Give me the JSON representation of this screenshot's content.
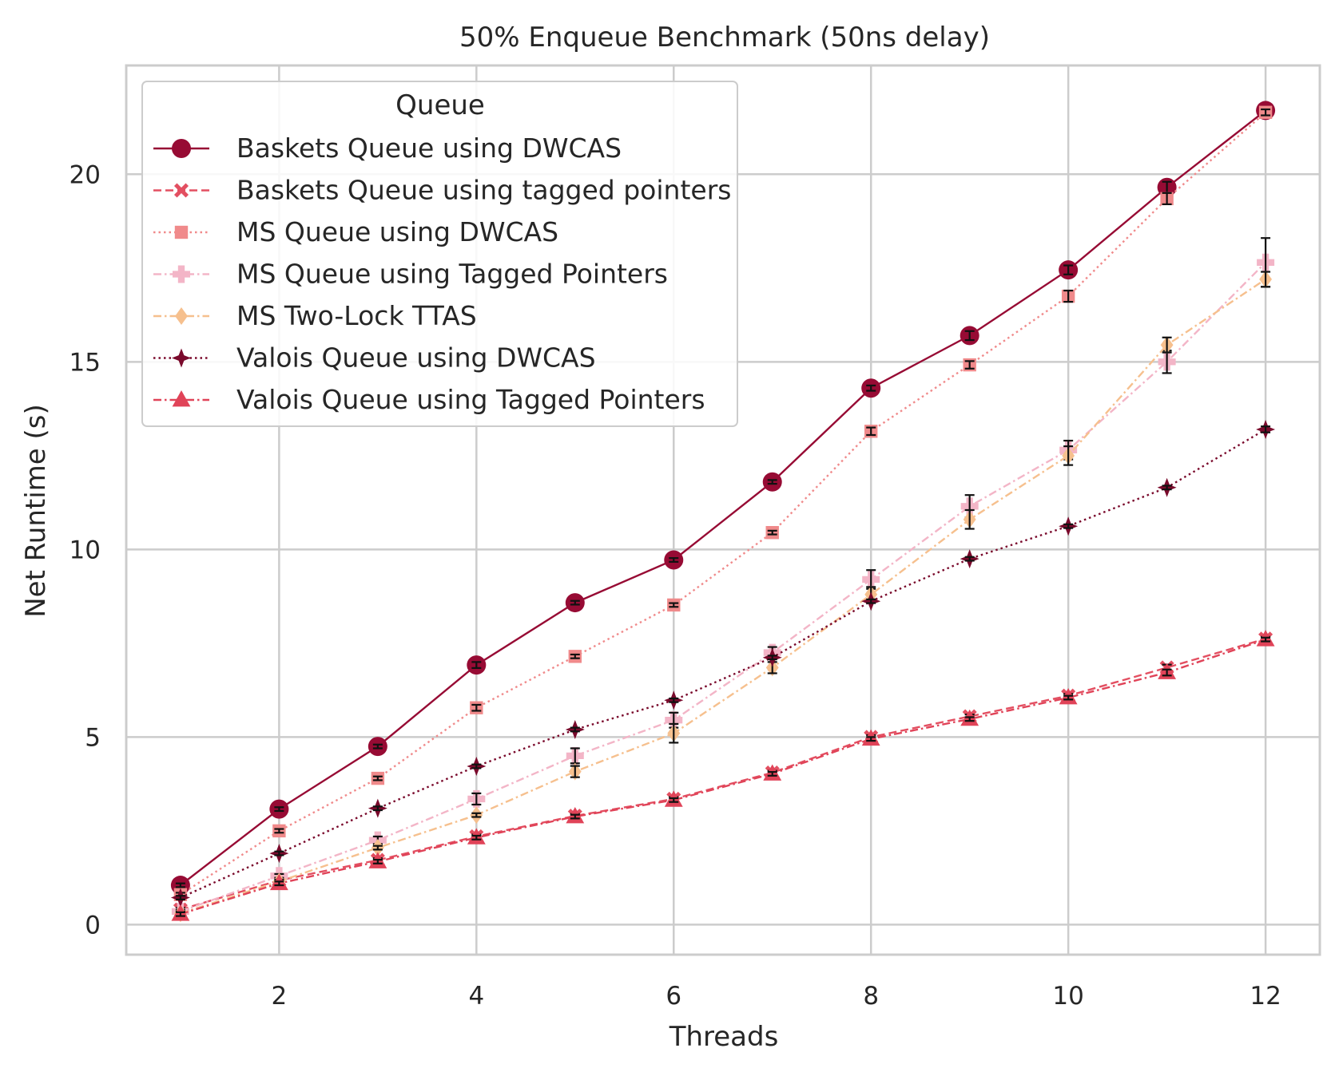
{
  "chart_data": {
    "type": "line",
    "title": "50% Enqueue Benchmark (50ns delay)",
    "xlabel": "Threads",
    "ylabel": "Net Runtime (s)",
    "xlim": [
      0.45,
      12.55
    ],
    "ylim": [
      -0.8,
      22.9
    ],
    "x_ticks": [
      2,
      4,
      6,
      8,
      10,
      12
    ],
    "y_ticks": [
      0,
      5,
      10,
      15,
      20
    ],
    "grid": true,
    "legend_title": "Queue",
    "legend_position": "top-left",
    "x": [
      1,
      2,
      3,
      4,
      5,
      6,
      7,
      8,
      9,
      10,
      11,
      12
    ],
    "series": [
      {
        "name": "Baskets Queue using DWCAS",
        "color": "#970b34",
        "marker": "circle",
        "dash": "solid",
        "values": [
          1.05,
          3.08,
          4.75,
          6.92,
          8.58,
          9.72,
          11.8,
          14.3,
          15.7,
          17.45,
          19.65,
          21.7
        ],
        "errors": [
          0.05,
          0.05,
          0.05,
          0.08,
          0.05,
          0.05,
          0.05,
          0.07,
          0.12,
          0.12,
          0.15,
          0.1
        ]
      },
      {
        "name": "Baskets Queue using tagged pointers",
        "color": "#e34f61",
        "marker": "x",
        "dash": "dashed",
        "values": [
          0.4,
          1.18,
          1.72,
          2.35,
          2.9,
          3.35,
          4.05,
          5.0,
          5.55,
          6.1,
          6.85,
          7.62
        ],
        "errors": [
          0.05,
          0.05,
          0.05,
          0.05,
          0.05,
          0.05,
          0.05,
          0.05,
          0.05,
          0.05,
          0.08,
          0.05
        ]
      },
      {
        "name": "MS Queue using DWCAS",
        "color": "#f08a8b",
        "marker": "square",
        "dash": "dotted",
        "values": [
          0.8,
          2.5,
          3.9,
          5.78,
          7.15,
          8.52,
          10.45,
          13.15,
          14.92,
          16.75,
          19.35,
          21.65
        ],
        "errors": [
          0.05,
          0.05,
          0.05,
          0.08,
          0.05,
          0.05,
          0.05,
          0.1,
          0.1,
          0.15,
          0.15,
          0.08
        ]
      },
      {
        "name": "MS Queue using Tagged Pointers",
        "color": "#f3b5c7",
        "marker": "plus",
        "dash": "dashdot",
        "values": [
          0.35,
          1.3,
          2.25,
          3.35,
          4.5,
          5.45,
          7.25,
          9.2,
          11.15,
          12.65,
          15.0,
          17.65
        ],
        "errors": [
          0.05,
          0.05,
          0.1,
          0.15,
          0.2,
          0.2,
          0.15,
          0.25,
          0.3,
          0.25,
          0.3,
          0.65
        ]
      },
      {
        "name": "MS Two-Lock TTAS",
        "color": "#f6c08e",
        "marker": "diamond",
        "dash": "dashdot",
        "values": [
          0.3,
          1.15,
          2.05,
          2.92,
          4.08,
          5.1,
          6.85,
          8.8,
          10.8,
          12.5,
          15.45,
          17.2
        ],
        "errors": [
          0.05,
          0.05,
          0.05,
          0.05,
          0.15,
          0.25,
          0.15,
          0.2,
          0.25,
          0.25,
          0.2,
          0.2
        ]
      },
      {
        "name": "Valois Queue using DWCAS",
        "color": "#7a0a2c",
        "marker": "star",
        "dash": "dotted",
        "values": [
          0.72,
          1.9,
          3.1,
          4.22,
          5.2,
          5.98,
          7.12,
          8.62,
          9.75,
          10.62,
          11.65,
          13.2
        ],
        "errors": [
          0.05,
          0.05,
          0.05,
          0.05,
          0.05,
          0.05,
          0.05,
          0.05,
          0.05,
          0.05,
          0.05,
          0.08
        ]
      },
      {
        "name": "Valois Queue using Tagged Pointers",
        "color": "#e04358",
        "marker": "triangle",
        "dash": "dashdot",
        "values": [
          0.28,
          1.1,
          1.68,
          2.32,
          2.88,
          3.32,
          4.02,
          4.95,
          5.48,
          6.05,
          6.72,
          7.6
        ],
        "errors": [
          0.05,
          0.05,
          0.05,
          0.05,
          0.05,
          0.05,
          0.05,
          0.05,
          0.05,
          0.05,
          0.08,
          0.05
        ]
      }
    ]
  }
}
